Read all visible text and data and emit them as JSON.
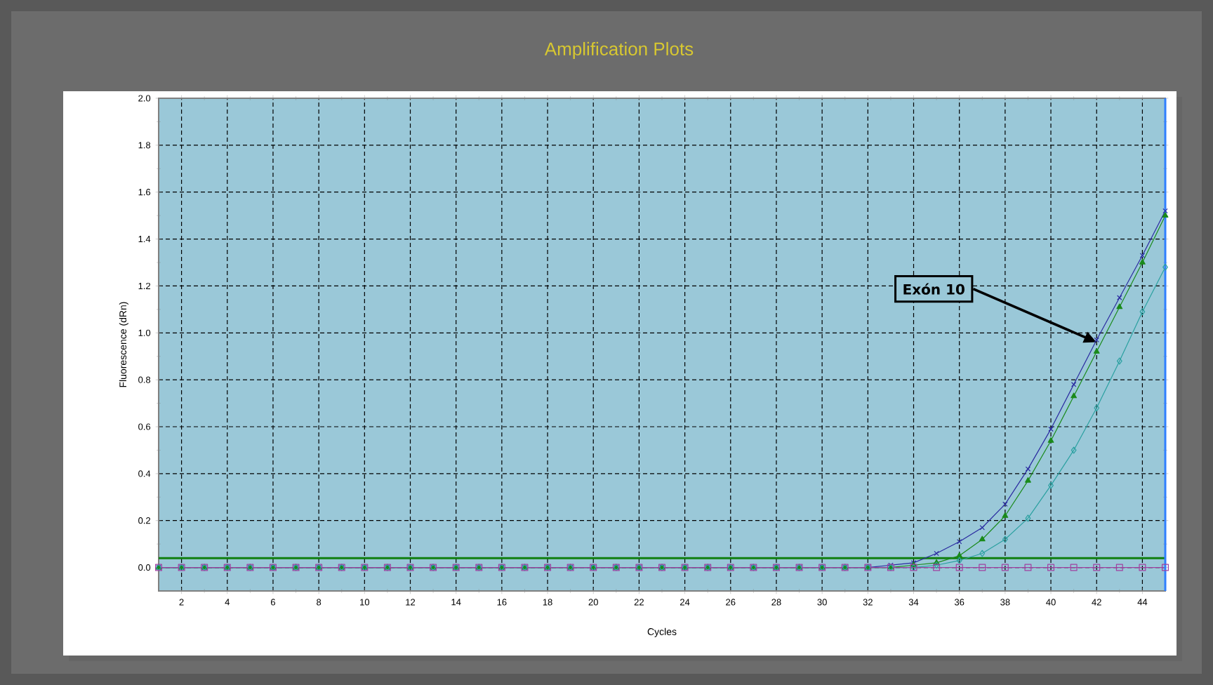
{
  "chart_data": {
    "type": "line",
    "title": "Amplification Plots",
    "xlabel": "Cycles",
    "ylabel": "Fluorescence (dRn)",
    "x": [
      1,
      2,
      3,
      4,
      5,
      6,
      7,
      8,
      9,
      10,
      11,
      12,
      13,
      14,
      15,
      16,
      17,
      18,
      19,
      20,
      21,
      22,
      23,
      24,
      25,
      26,
      27,
      28,
      29,
      30,
      31,
      32,
      33,
      34,
      35,
      36,
      37,
      38,
      39,
      40,
      41,
      42,
      43,
      44,
      45
    ],
    "series": [
      {
        "color": "#2a2aa0",
        "marker": "cross",
        "values": [
          0,
          0,
          0,
          0,
          0,
          0,
          0,
          0,
          0,
          0,
          0,
          0,
          0,
          0,
          0,
          0,
          0,
          0,
          0,
          0,
          0,
          0,
          0,
          0,
          0,
          0,
          0,
          0,
          0,
          0,
          0,
          0,
          0.01,
          0.02,
          0.06,
          0.11,
          0.17,
          0.27,
          0.42,
          0.59,
          0.78,
          0.97,
          1.15,
          1.33,
          1.52
        ]
      },
      {
        "color": "#1a8a1a",
        "marker": "triangle",
        "values": [
          0,
          0,
          0,
          0,
          0,
          0,
          0,
          0,
          0,
          0,
          0,
          0,
          0,
          0,
          0,
          0,
          0,
          0,
          0,
          0,
          0,
          0,
          0,
          0,
          0,
          0,
          0,
          0,
          0,
          0,
          0,
          0,
          0,
          0.01,
          0.02,
          0.05,
          0.12,
          0.22,
          0.37,
          0.54,
          0.73,
          0.92,
          1.11,
          1.3,
          1.5
        ]
      },
      {
        "color": "#2aa0a0",
        "marker": "diamond",
        "values": [
          0,
          0,
          0,
          0,
          0,
          0,
          0,
          0,
          0,
          0,
          0,
          0,
          0,
          0,
          0,
          0,
          0,
          0,
          0,
          0,
          0,
          0,
          0,
          0,
          0,
          0,
          0,
          0,
          0,
          0,
          0,
          0,
          0,
          0,
          0.01,
          0.03,
          0.06,
          0.12,
          0.21,
          0.35,
          0.5,
          0.68,
          0.88,
          1.09,
          1.28
        ]
      },
      {
        "color": "#a040a0",
        "marker": "square",
        "values": [
          0,
          0,
          0,
          0,
          0,
          0,
          0,
          0,
          0,
          0,
          0,
          0,
          0,
          0,
          0,
          0,
          0,
          0,
          0,
          0,
          0,
          0,
          0,
          0,
          0,
          0,
          0,
          0,
          0,
          0,
          0,
          0,
          0,
          0,
          0,
          0,
          0,
          0,
          0,
          0,
          0,
          0,
          0,
          0,
          0
        ]
      }
    ],
    "xlim": [
      1,
      45
    ],
    "ylim": [
      -0.1,
      2.0
    ],
    "xticks": [
      2,
      4,
      6,
      8,
      10,
      12,
      14,
      16,
      18,
      20,
      22,
      24,
      26,
      28,
      30,
      32,
      34,
      36,
      38,
      40,
      42,
      44
    ],
    "yticks": [
      {
        "value": 0,
        "label": "0.0"
      },
      0.2,
      0.4,
      0.6,
      0.8,
      {
        "value": 1,
        "label": "1.0"
      },
      1.2,
      1.4,
      1.6,
      1.8,
      {
        "value": 2,
        "label": "2.0"
      }
    ],
    "grid": true,
    "ref_lines": [
      {
        "axis": "y",
        "value": 0.04,
        "color": "#108010"
      },
      {
        "axis": "x",
        "value": 45,
        "color": "#3080ff"
      }
    ],
    "annotations": [
      {
        "text": "Exón 10",
        "x": 42,
        "y": 0.96
      }
    ]
  }
}
